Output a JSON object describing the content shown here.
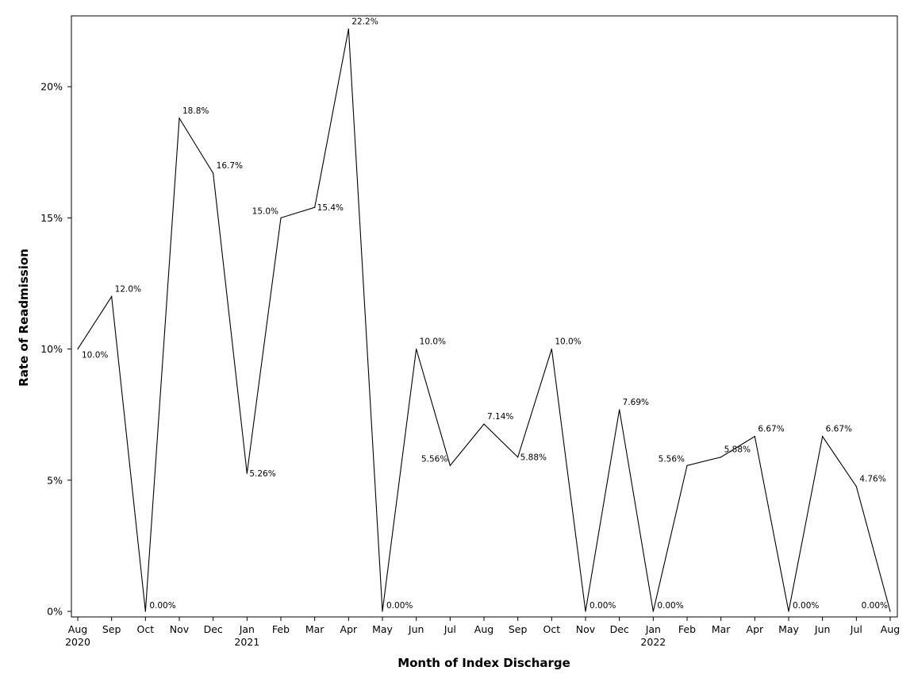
{
  "chart_data": {
    "type": "line",
    "title": "",
    "xlabel": "Month of Index Discharge",
    "ylabel": "Rate of Readmission",
    "ylim": [
      0,
      22.7
    ],
    "yticks": [
      0,
      5,
      10,
      15,
      20
    ],
    "ytick_labels": [
      "0%",
      "5%",
      "10%",
      "15%",
      "20%"
    ],
    "grid": false,
    "legend": "none",
    "line_color": "#000000",
    "categories": [
      "Aug",
      "Sep",
      "Oct",
      "Nov",
      "Dec",
      "Jan",
      "Feb",
      "Mar",
      "Apr",
      "May",
      "Jun",
      "Jul",
      "Aug",
      "Sep",
      "Oct",
      "Nov",
      "Dec",
      "Jan",
      "Feb",
      "Mar",
      "Apr",
      "May",
      "Jun",
      "Jul",
      "Aug"
    ],
    "year_labels": [
      "2020",
      "",
      "",
      "",
      "",
      "2021",
      "",
      "",
      "",
      "",
      "",
      "",
      "",
      "",
      "",
      "",
      "",
      "2022",
      "",
      "",
      "",
      "",
      "",
      "",
      ""
    ],
    "values": [
      10.0,
      12.0,
      0.0,
      18.8,
      16.7,
      5.26,
      15.0,
      15.4,
      22.2,
      0.0,
      10.0,
      5.56,
      7.14,
      5.88,
      10.0,
      0.0,
      7.69,
      0.0,
      5.56,
      5.88,
      6.67,
      0.0,
      6.67,
      4.76,
      0.0
    ],
    "data_labels": [
      "10.0%",
      "12.0%",
      "0.00%",
      "18.8%",
      "16.7%",
      "5.26%",
      "15.0%",
      "15.4%",
      "22.2%",
      "0.00%",
      "10.0%",
      "5.56%",
      "7.14%",
      "5.88%",
      "10.0%",
      "0.00%",
      "7.69%",
      "0.00%",
      "5.56%",
      "5.88%",
      "6.67%",
      "0.00%",
      "6.67%",
      "4.76%",
      "0.00%"
    ]
  }
}
